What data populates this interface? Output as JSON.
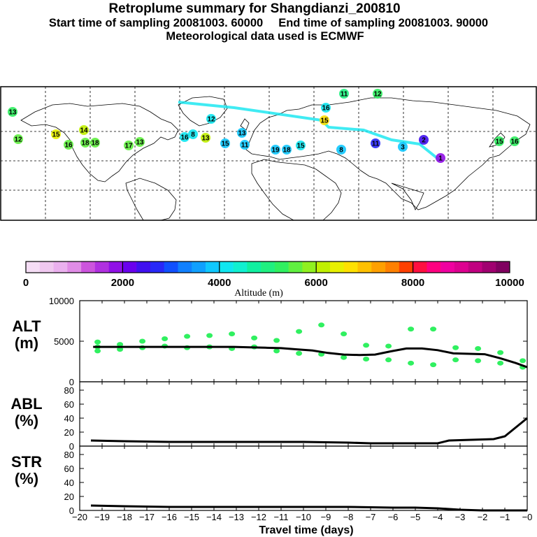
{
  "header": {
    "title": "Retroplume summary for Shangdianzi_200810",
    "start_label": "Start time of sampling 20081003. 60000",
    "end_label": "End time of sampling 20081003. 90000",
    "met_label": "Meteorological data used is ECMWF"
  },
  "colorbar": {
    "label": "Altitude (m)",
    "tick_labels": [
      "0",
      "2000",
      "4000",
      "6000",
      "8000",
      "10000"
    ],
    "colors": [
      "#f5ddf5",
      "#f0c8f0",
      "#eab0ee",
      "#e08ce6",
      "#cc55dd",
      "#b030e0",
      "#9010e6",
      "#6a00ee",
      "#4010f0",
      "#2828f8",
      "#1050ff",
      "#1080ff",
      "#10a0ff",
      "#10c8ff",
      "#10e6f0",
      "#10f0d0",
      "#10f0a0",
      "#20f080",
      "#30f060",
      "#60f040",
      "#90f020",
      "#c0f000",
      "#e8f000",
      "#ffe000",
      "#ffc000",
      "#ffa000",
      "#ff8000",
      "#ff4000",
      "#ff1040",
      "#ff0080",
      "#f000a0",
      "#dd0090",
      "#c00080",
      "#a00070",
      "#800060"
    ]
  },
  "map": {
    "labels": [
      {
        "t": "13",
        "c": "#30f060"
      },
      {
        "t": "12",
        "c": "#60f040"
      },
      {
        "t": "15",
        "c": "#e8f000"
      },
      {
        "t": "16",
        "c": "#60f040"
      },
      {
        "t": "18",
        "c": "#60f040"
      },
      {
        "t": "18",
        "c": "#60f040"
      },
      {
        "t": "14",
        "c": "#c0f000"
      },
      {
        "t": "17",
        "c": "#60f040"
      },
      {
        "t": "13",
        "c": "#60f040"
      },
      {
        "t": "16",
        "c": "#10e6f0"
      },
      {
        "t": "8",
        "c": "#10e6f0"
      },
      {
        "t": "12",
        "c": "#10e6f0"
      },
      {
        "t": "13",
        "c": "#c0f000"
      },
      {
        "t": "13",
        "c": "#10c8ff"
      },
      {
        "t": "15",
        "c": "#10c8ff"
      },
      {
        "t": "11",
        "c": "#10c8ff"
      },
      {
        "t": "19",
        "c": "#10c8ff"
      },
      {
        "t": "18",
        "c": "#10c8ff"
      },
      {
        "t": "15",
        "c": "#10e6f0"
      },
      {
        "t": "16",
        "c": "#10e6f0"
      },
      {
        "t": "11",
        "c": "#20f080"
      },
      {
        "t": "12",
        "c": "#30f060"
      },
      {
        "t": "15",
        "c": "#ffe000"
      },
      {
        "t": "8",
        "c": "#10c8ff"
      },
      {
        "t": "11",
        "c": "#2828f8"
      },
      {
        "t": "3",
        "c": "#10c8ff"
      },
      {
        "t": "2",
        "c": "#4010f0"
      },
      {
        "t": "1",
        "c": "#9010e6"
      },
      {
        "t": "15",
        "c": "#30f060"
      },
      {
        "t": "16",
        "c": "#30f060"
      }
    ]
  },
  "chart_data": [
    {
      "type": "scatter",
      "panel_label": [
        "ALT",
        "(m)"
      ],
      "ylim": [
        0,
        10000
      ],
      "y_ticks": [
        "0",
        "5000",
        "10000"
      ],
      "x": [
        -19.4,
        -18.7,
        -18.0,
        -17.3,
        -16.6,
        -15.9,
        -15.2,
        -14.5,
        -13.8,
        -13.1,
        -12.4,
        -11.7,
        -11.0,
        -10.3,
        -9.6,
        -8.9,
        -8.2,
        -7.5,
        -6.8,
        -6.1,
        -5.4,
        -4.7,
        -4.0,
        -3.3,
        -2.6,
        -1.9,
        -1.2,
        -0.5,
        0.0
      ],
      "median": [
        4300,
        4300,
        4300,
        4300,
        4300,
        4300,
        4300,
        4300,
        4300,
        4300,
        4250,
        4200,
        4150,
        4000,
        3850,
        3550,
        3350,
        3300,
        3350,
        3750,
        4100,
        4100,
        3900,
        3500,
        3450,
        3400,
        2900,
        2300,
        1800
      ],
      "points": [
        [
          -19.2,
          4900
        ],
        [
          -19.2,
          4300
        ],
        [
          -19.2,
          3800
        ],
        [
          -18.2,
          4600
        ],
        [
          -18.2,
          4000
        ],
        [
          -17.2,
          5000
        ],
        [
          -17.2,
          4200
        ],
        [
          -16.2,
          5300
        ],
        [
          -16.2,
          4400
        ],
        [
          -15.2,
          5600
        ],
        [
          -15.2,
          4200
        ],
        [
          -14.2,
          5700
        ],
        [
          -14.2,
          4300
        ],
        [
          -13.2,
          5900
        ],
        [
          -13.2,
          4100
        ],
        [
          -12.2,
          5400
        ],
        [
          -12.2,
          4300
        ],
        [
          -11.2,
          5100
        ],
        [
          -11.2,
          3800
        ],
        [
          -10.2,
          6200
        ],
        [
          -10.2,
          3500
        ],
        [
          -9.2,
          7000
        ],
        [
          -9.2,
          3400
        ],
        [
          -8.2,
          5900
        ],
        [
          -8.2,
          3000
        ],
        [
          -7.2,
          4500
        ],
        [
          -7.2,
          2800
        ],
        [
          -6.2,
          4400
        ],
        [
          -6.2,
          2700
        ],
        [
          -5.2,
          6500
        ],
        [
          -5.2,
          2300
        ],
        [
          -4.2,
          6500
        ],
        [
          -4.2,
          2100
        ],
        [
          -3.2,
          4200
        ],
        [
          -3.2,
          2700
        ],
        [
          -2.2,
          4100
        ],
        [
          -2.2,
          2600
        ],
        [
          -1.2,
          3600
        ],
        [
          -1.2,
          2300
        ],
        [
          -0.2,
          2600
        ],
        [
          -0.2,
          1800
        ]
      ]
    },
    {
      "type": "line",
      "panel_label": [
        "ABL",
        "(%)"
      ],
      "ylim": [
        0,
        90
      ],
      "y_ticks": [
        "0",
        "20",
        "40",
        "60",
        "80"
      ],
      "x": [
        -19.5,
        -18.0,
        -16.0,
        -14.0,
        -12.0,
        -10.0,
        -8.0,
        -7.0,
        -6.0,
        -5.0,
        -4.0,
        -3.5,
        -2.5,
        -1.5,
        -1.0,
        0.0
      ],
      "y": [
        8,
        7,
        6,
        6,
        6,
        6,
        5,
        4,
        4,
        4,
        4,
        8,
        9,
        10,
        14,
        40
      ]
    },
    {
      "type": "line",
      "panel_label": [
        "STR",
        "(%)"
      ],
      "ylim": [
        0,
        90
      ],
      "y_ticks": [
        "0",
        "20",
        "40",
        "60",
        "80"
      ],
      "x": [
        -19.5,
        -18.0,
        -16.0,
        -14.0,
        -12.0,
        -10.0,
        -8.0,
        -6.0,
        -5.0,
        -4.0,
        -3.0,
        -2.0,
        -1.0,
        0.0
      ],
      "y": [
        7,
        6,
        5,
        5,
        5,
        5,
        5,
        4,
        4,
        3,
        1,
        0,
        0,
        0
      ]
    }
  ],
  "x_axis": {
    "label": "Travel time (days)",
    "tick_labels": [
      "−20",
      "−19",
      "−18",
      "−17",
      "−16",
      "−15",
      "−14",
      "−13",
      "−12",
      "−11",
      "−10",
      "−9",
      "−8",
      "−7",
      "−6",
      "−5",
      "−4",
      "−3",
      "−2",
      "−1",
      "−0"
    ]
  }
}
